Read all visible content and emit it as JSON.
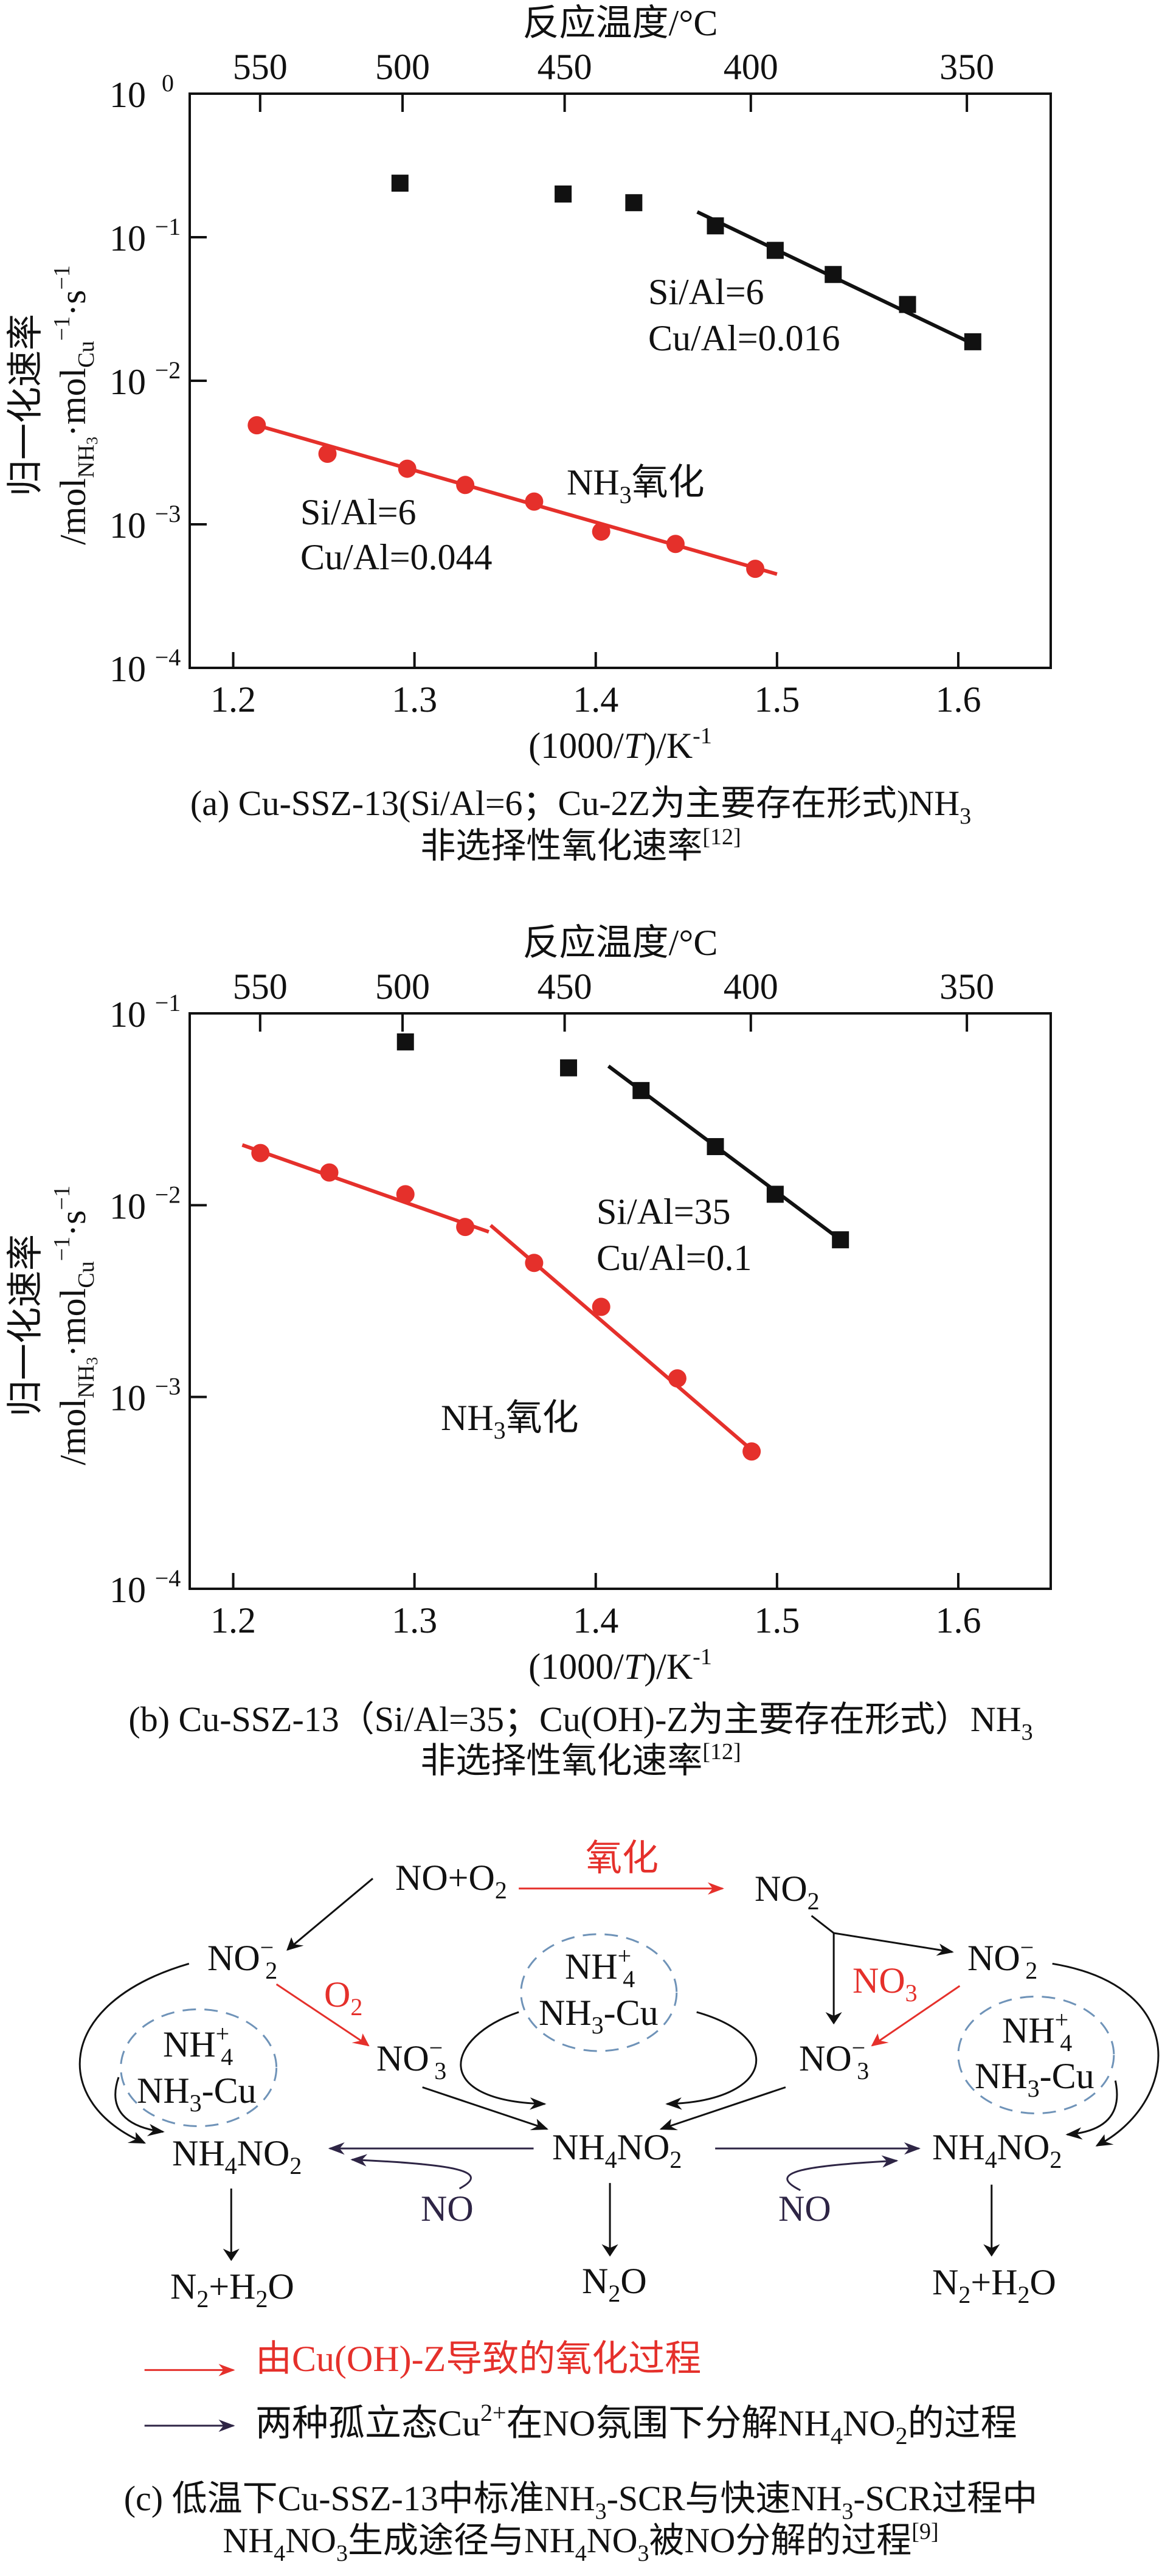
{
  "colors": {
    "red": "#e5302b",
    "black": "#111111",
    "purple": "#2e2545",
    "dashed_circle": "#6f93b8"
  },
  "chart_data": [
    {
      "panel": "a",
      "type": "scatter",
      "yscale": "log",
      "xlim": [
        1.176,
        1.651
      ],
      "ylim": [
        0.0001,
        1
      ],
      "grid": false,
      "xticks": [
        1.2,
        1.3,
        1.4,
        1.5,
        1.6
      ],
      "xtick_labels": [
        "1.2",
        "1.3",
        "1.4",
        "1.5",
        "1.6"
      ],
      "yticks": [
        1,
        0.1,
        0.01,
        0.001,
        0.0001
      ],
      "ytick_labels": [
        {
          "base": "10",
          "exp": "0"
        },
        {
          "base": "10",
          "exp": "−1"
        },
        {
          "base": "10",
          "exp": "−2"
        },
        {
          "base": "10",
          "exp": "−3"
        },
        {
          "base": "10",
          "exp": "−4"
        }
      ],
      "top_axis": {
        "label": "反应温度/°C",
        "ticks": [
          550,
          500,
          450,
          400,
          350
        ],
        "tick_labels": [
          "550",
          "500",
          "450",
          "400",
          "350"
        ]
      },
      "xlabel": {
        "pre": "(1000/",
        "italic": "T",
        "post": ")/K",
        "sup": "-1"
      },
      "ylabel": {
        "line1": "归一化速率",
        "mol1": "/mol",
        "sub1": "NH",
        "sub1b": "3",
        "mol2": "·mol",
        "sub2": "Cu",
        "sup2": "−1",
        "s": "·s",
        "sup3": "−1"
      },
      "series": [
        {
          "marker": "square",
          "color": "#111111",
          "points": [
            [
              1.292,
              0.238
            ],
            [
              1.382,
              0.2
            ],
            [
              1.421,
              0.174
            ],
            [
              1.466,
              0.12
            ],
            [
              1.499,
              0.081
            ],
            [
              1.531,
              0.055
            ],
            [
              1.572,
              0.034
            ],
            [
              1.608,
              0.0187
            ]
          ],
          "fit_lines": [
            [
              [
                1.456,
                0.15
              ],
              [
                1.608,
                0.0181
              ]
            ]
          ]
        },
        {
          "marker": "circle",
          "color": "#e5302b",
          "points": [
            [
              1.213,
              0.0049
            ],
            [
              1.252,
              0.0031
            ],
            [
              1.296,
              0.00244
            ],
            [
              1.328,
              0.00188
            ],
            [
              1.366,
              0.00144
            ],
            [
              1.403,
              0.00089
            ],
            [
              1.444,
              0.00073
            ],
            [
              1.488,
              0.00049
            ]
          ],
          "fit_lines": [
            [
              [
                1.213,
                0.0049
              ],
              [
                1.5,
                0.00045
              ]
            ]
          ]
        }
      ],
      "annotations": {
        "black_si": "Si/Al=6",
        "black_cu": "Cu/Al=0.016",
        "red_si": "Si/Al=6",
        "red_cu": "Cu/Al=0.044",
        "nh3_pre": "NH",
        "nh3_sub": "3",
        "nh3_post": "氧化"
      },
      "caption": {
        "line1": "(a) Cu-SSZ-13(Si/Al=6；Cu-2Z为主要存在形式)NH",
        "line1_sub": "3",
        "line2": "非选择性氧化速率",
        "ref": "[12]"
      }
    },
    {
      "panel": "b",
      "type": "scatter",
      "yscale": "log",
      "xlim": [
        1.176,
        1.651
      ],
      "ylim": [
        0.0001,
        0.1
      ],
      "grid": false,
      "xticks": [
        1.2,
        1.3,
        1.4,
        1.5,
        1.6
      ],
      "xtick_labels": [
        "1.2",
        "1.3",
        "1.4",
        "1.5",
        "1.6"
      ],
      "yticks": [
        0.1,
        0.01,
        0.001,
        0.0001
      ],
      "ytick_labels": [
        {
          "base": "10",
          "exp": "−1"
        },
        {
          "base": "10",
          "exp": "−2"
        },
        {
          "base": "10",
          "exp": "−3"
        },
        {
          "base": "10",
          "exp": "−4"
        }
      ],
      "top_axis": {
        "label": "反应温度/°C",
        "ticks": [
          550,
          500,
          450,
          400,
          350
        ],
        "tick_labels": [
          "550",
          "500",
          "450",
          "400",
          "350"
        ]
      },
      "xlabel": {
        "pre": "(1000/",
        "italic": "T",
        "post": ")/K",
        "sup": "-1"
      },
      "ylabel": {
        "line1": "归一化速率",
        "mol1": "/mol",
        "sub1": "NH",
        "sub1b": "3",
        "mol2": "·mol",
        "sub2": "Cu",
        "sup2": "−1",
        "s": "·s",
        "sup3": "−1"
      },
      "series": [
        {
          "marker": "square",
          "color": "#111111",
          "points": [
            [
              1.295,
              0.071
            ],
            [
              1.385,
              0.052
            ],
            [
              1.425,
              0.0396
            ],
            [
              1.466,
              0.0202
            ],
            [
              1.499,
              0.0114
            ],
            [
              1.535,
              0.0066
            ]
          ],
          "fit_lines": [
            [
              [
                1.407,
                0.0531
              ],
              [
                1.535,
                0.0066
              ]
            ]
          ]
        },
        {
          "marker": "circle",
          "color": "#e5302b",
          "points": [
            [
              1.215,
              0.0187
            ],
            [
              1.253,
              0.0148
            ],
            [
              1.295,
              0.0114
            ],
            [
              1.328,
              0.0077
            ],
            [
              1.366,
              0.005
            ],
            [
              1.403,
              0.00295
            ],
            [
              1.445,
              0.00125
            ],
            [
              1.486,
              0.00052
            ]
          ],
          "fit_lines": [
            [
              [
                1.205,
                0.0206
              ],
              [
                1.341,
                0.00726
              ]
            ],
            [
              [
                1.342,
                0.00785
              ],
              [
                1.484,
                0.00055
              ]
            ]
          ]
        }
      ],
      "annotations": {
        "black_si": "Si/Al=35",
        "black_cu": "Cu/Al=0.1",
        "nh3_pre": "NH",
        "nh3_sub": "3",
        "nh3_post": "氧化"
      },
      "caption": {
        "line1": "(b) Cu-SSZ-13（Si/Al=35；Cu(OH)-Z为主要存在形式）NH",
        "line1_sub": "3",
        "line2": "非选择性氧化速率",
        "ref": "[12]"
      }
    }
  ],
  "diagram": {
    "no_o2": {
      "a": "NO+O",
      "sub": "2"
    },
    "oxidation": "氧化",
    "no2_top": {
      "a": "NO",
      "sub": "2"
    },
    "no2m": {
      "a": "NO",
      "sup": "−",
      "sub": "2"
    },
    "o2": {
      "a": "O",
      "sub": "2"
    },
    "no3m": {
      "a": "NO",
      "sup": "−",
      "sub": "3"
    },
    "no3_red": {
      "a": "NO",
      "sub": "3"
    },
    "nh4p": {
      "a": "NH",
      "sup": "+",
      "sub": "4"
    },
    "nh3cu": {
      "a": "NH",
      "sub": "3",
      "b": "-Cu"
    },
    "nh4no2": {
      "a": "NH",
      "sub1": "4",
      "b": "NO",
      "sub2": "2"
    },
    "no": "NO",
    "n2h2o": {
      "a": "N",
      "sub1": "2",
      "b": "+H",
      "sub2": "2",
      "c": "O"
    },
    "n2o": {
      "a": "N",
      "sub": "2",
      "b": "O"
    },
    "legend": {
      "red": "由Cu(OH)-Z导致的氧化过程",
      "purple": {
        "a": "两种孤立态Cu",
        "sup": "2+",
        "b": "在NO氛围下分解NH",
        "sub1": "4",
        "c": "NO",
        "sub2": "2",
        "d": "的过程"
      }
    },
    "caption": {
      "l1a": "(c) 低温下Cu-SSZ-13中标准NH",
      "l1s1": "3",
      "l1b": "-SCR与快速NH",
      "l1s2": "3",
      "l1c": "-SCR过程中",
      "l2a": "NH",
      "l2s1": "4",
      "l2b": "NO",
      "l2s2": "3",
      "l2c": "生成途径与NH",
      "l2s3": "4",
      "l2d": "NO",
      "l2s4": "3",
      "l2e": "被NO分解的过程",
      "ref": "[9]"
    }
  }
}
